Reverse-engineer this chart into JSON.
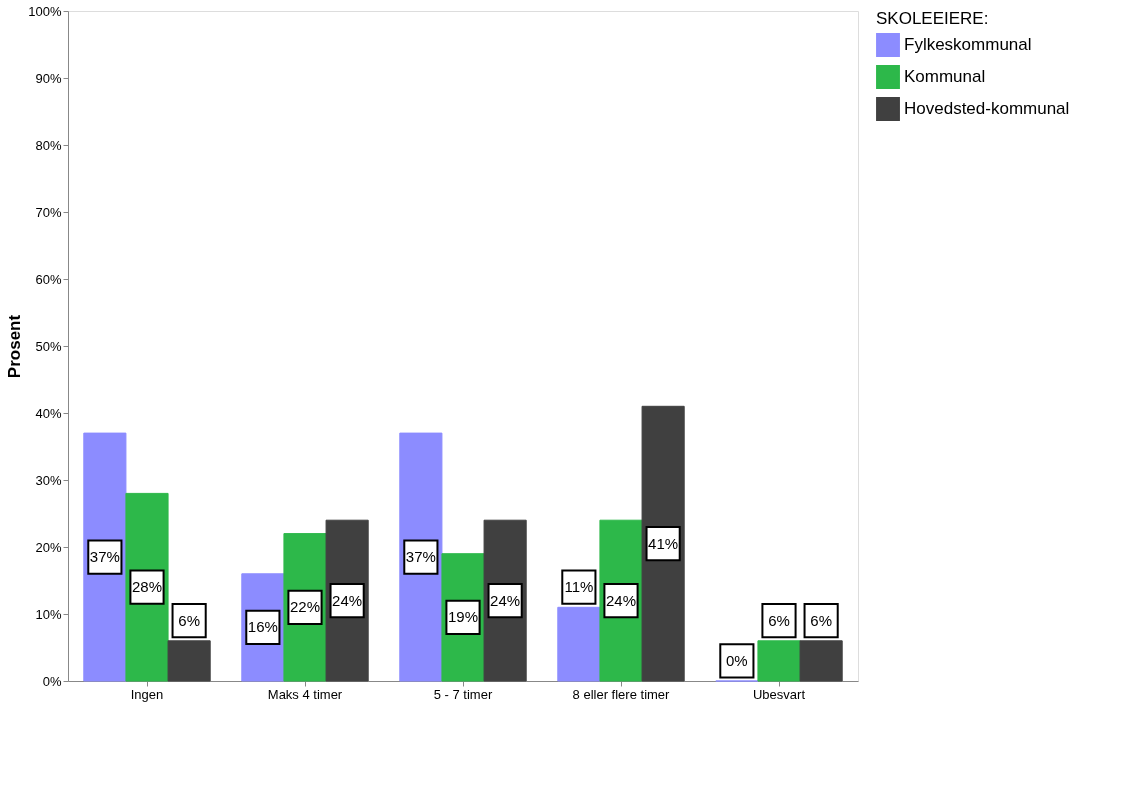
{
  "chart_data": {
    "type": "bar",
    "ylabel": "Prosent",
    "legend_title": "SKOLEEIERE:",
    "legend": "top right",
    "grid": false,
    "categories": [
      "Ingen",
      "Maks 4 timer",
      "5 - 7 timer",
      "8 eller flere timer",
      "Ubesvart"
    ],
    "ylim": [
      0,
      100
    ],
    "yticks": [
      {
        "value": 0,
        "label": "0%"
      },
      {
        "value": 10,
        "label": "10%"
      },
      {
        "value": 20,
        "label": "20%"
      },
      {
        "value": 30,
        "label": "30%"
      },
      {
        "value": 40,
        "label": "40%"
      },
      {
        "value": 50,
        "label": "50%"
      },
      {
        "value": 60,
        "label": "60%"
      },
      {
        "value": 70,
        "label": "70%"
      },
      {
        "value": 80,
        "label": "80%"
      },
      {
        "value": 90,
        "label": "90%"
      },
      {
        "value": 100,
        "label": "100%"
      }
    ],
    "series": [
      {
        "name": "Fylkeskommunal",
        "color": "#8c8cff",
        "values": [
          37,
          16,
          37,
          11,
          0
        ],
        "value_labels": [
          "37%",
          "16%",
          "37%",
          "11%",
          "0%"
        ]
      },
      {
        "name": "Kommunal",
        "color": "#2db84a",
        "values": [
          28,
          22,
          19,
          24,
          6
        ],
        "value_labels": [
          "28%",
          "22%",
          "19%",
          "24%",
          "6%"
        ]
      },
      {
        "name": "Hovedsted-kommunal",
        "color": "#404040",
        "values": [
          6,
          24,
          24,
          41,
          6
        ],
        "value_labels": [
          "6%",
          "24%",
          "24%",
          "41%",
          "6%"
        ]
      }
    ]
  }
}
